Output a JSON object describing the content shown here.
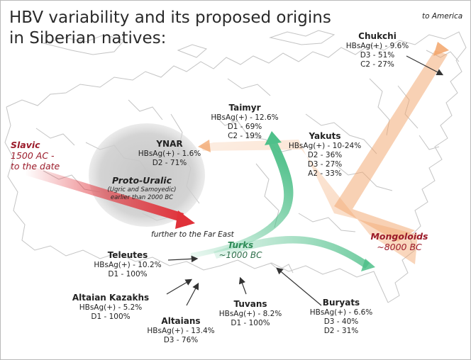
{
  "title": {
    "line1": "HBV variability and its proposed origins",
    "line2": "in Siberian natives:"
  },
  "to_america": "to America",
  "colors": {
    "slavic": "#e0323a",
    "turks": "#4fc08a",
    "mongoloids": "#f2a46a",
    "proto_uralic": "#c8c8c8"
  },
  "groups": [
    {
      "name": "Chukchi",
      "lines": [
        "HBsAg(+) - 9.6%",
        "D3 - 51%",
        "C2 - 27%"
      ]
    },
    {
      "name": "Taimyr",
      "lines": [
        "HBsAg(+) - 12.6%",
        "D1 - 69%",
        "C2 - 19%"
      ]
    },
    {
      "name": "YNAR",
      "lines": [
        "HBsAg(+) - 1.6%",
        "D2 - 71%"
      ]
    },
    {
      "name": "Yakuts",
      "lines": [
        "HBsAg(+) - 10-24%",
        "D2 - 36%",
        "D3 - 27%",
        "A2 - 33%"
      ]
    },
    {
      "name": "Teleutes",
      "lines": [
        "HBsAg(+) - 10.2%",
        "D1 - 100%"
      ]
    },
    {
      "name": "Altaian Kazakhs",
      "lines": [
        "HBsAg(+) - 5.2%",
        "D1 - 100%"
      ]
    },
    {
      "name": "Altaians",
      "lines": [
        "HBsAg(+) - 13.4%",
        "D3 - 76%"
      ]
    },
    {
      "name": "Tuvans",
      "lines": [
        "HBsAg(+) - 8.2%",
        "D1 - 100%"
      ]
    },
    {
      "name": "Buryats",
      "lines": [
        "HBsAg(+) - 6.6%",
        "D3 - 40%",
        "D2 - 31%"
      ]
    }
  ],
  "origins": {
    "slavic": {
      "name": "Slavic",
      "line1": "1500 AC -",
      "line2": "to the date"
    },
    "proto_uralic": {
      "name": "Proto-Uralic",
      "line1": "(Ugric and Samoyedic)",
      "line2": "earlier than 2000 BC"
    },
    "further": "further to the Far East",
    "turks": {
      "name": "Turks",
      "date": "~1000 BC"
    },
    "mongoloids": {
      "name": "Mongoloids",
      "date": "~8000 BC"
    }
  }
}
